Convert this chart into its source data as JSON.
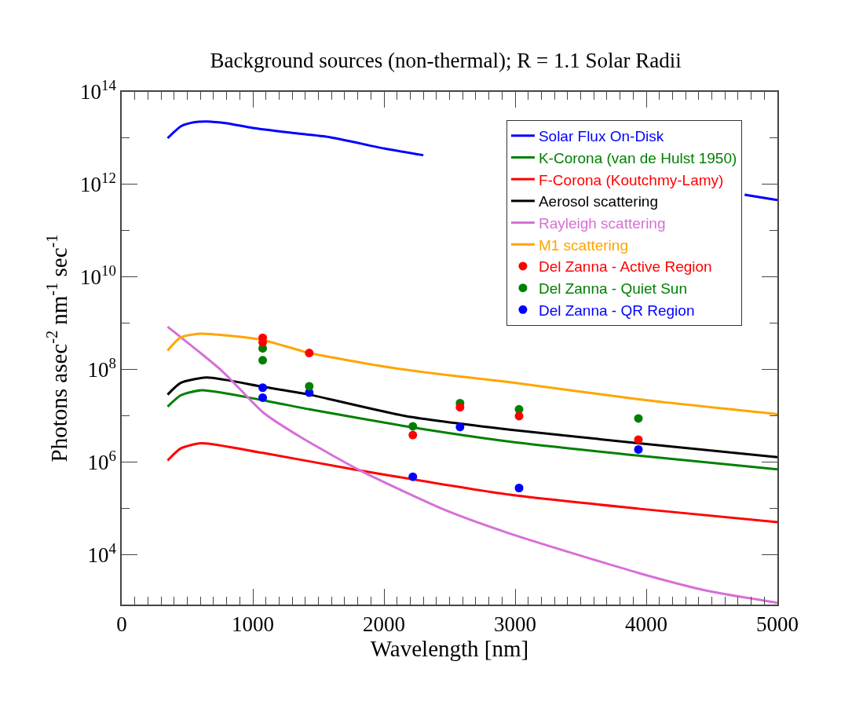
{
  "chart_data": {
    "type": "line",
    "title": "Background sources (non-thermal); R = 1.1 Solar Radii",
    "xlabel": "Wavelength [nm]",
    "ylabel": "Photons asec$^{-2}$ nm$^{-1}$ sec$^{-1}$",
    "log": "y",
    "grid": false,
    "legend": "top right",
    "line_style": "solid",
    "xlim": [
      0,
      5000
    ],
    "ylim": [
      850,
      100000000000000.0
    ],
    "xticks": [
      0,
      {
        "value": 100,
        "label": null
      },
      {
        "value": 200,
        "label": null
      },
      {
        "value": 300,
        "label": null
      },
      {
        "value": 400,
        "label": null
      },
      {
        "value": 500,
        "label": null
      },
      {
        "value": 600,
        "label": null
      },
      {
        "value": 700,
        "label": null
      },
      {
        "value": 800,
        "label": null
      },
      {
        "value": 900,
        "label": null
      },
      1000,
      {
        "value": 1100,
        "label": null
      },
      {
        "value": 1200,
        "label": null
      },
      {
        "value": 1300,
        "label": null
      },
      {
        "value": 1400,
        "label": null
      },
      {
        "value": 1500,
        "label": null
      },
      {
        "value": 1600,
        "label": null
      },
      {
        "value": 1700,
        "label": null
      },
      {
        "value": 1800,
        "label": null
      },
      {
        "value": 1900,
        "label": null
      },
      2000,
      {
        "value": 2100,
        "label": null
      },
      {
        "value": 2200,
        "label": null
      },
      {
        "value": 2300,
        "label": null
      },
      {
        "value": 2400,
        "label": null
      },
      {
        "value": 2500,
        "label": null
      },
      {
        "value": 2600,
        "label": null
      },
      {
        "value": 2700,
        "label": null
      },
      {
        "value": 2800,
        "label": null
      },
      {
        "value": 2900,
        "label": null
      },
      3000,
      {
        "value": 3100,
        "label": null
      },
      {
        "value": 3200,
        "label": null
      },
      {
        "value": 3300,
        "label": null
      },
      {
        "value": 3400,
        "label": null
      },
      {
        "value": 3500,
        "label": null
      },
      {
        "value": 3600,
        "label": null
      },
      {
        "value": 3700,
        "label": null
      },
      {
        "value": 3800,
        "label": null
      },
      {
        "value": 3900,
        "label": null
      },
      4000,
      {
        "value": 4100,
        "label": null
      },
      {
        "value": 4200,
        "label": null
      },
      {
        "value": 4300,
        "label": null
      },
      {
        "value": 4400,
        "label": null
      },
      {
        "value": 4500,
        "label": null
      },
      {
        "value": 4600,
        "label": null
      },
      {
        "value": 4700,
        "label": null
      },
      {
        "value": 4800,
        "label": null
      },
      {
        "value": 4900,
        "label": null
      },
      5000
    ],
    "yticks": [
      {
        "value": 10000,
        "label": "10$^{4}$"
      },
      {
        "value": 100000,
        "label": null
      },
      {
        "value": 1000000,
        "label": "10$^{6}$"
      },
      {
        "value": 10000000,
        "label": null
      },
      {
        "value": 100000000,
        "label": "10$^{8}$"
      },
      {
        "value": 1000000000,
        "label": null
      },
      {
        "value": 10000000000,
        "label": "10$^{10}$"
      },
      {
        "value": 100000000000,
        "label": null
      },
      {
        "value": 1000000000000,
        "label": "10$^{12}$"
      },
      {
        "value": 10000000000000,
        "label": null
      },
      {
        "value": 100000000000000,
        "label": "10$^{14}$"
      }
    ],
    "series": [
      {
        "name": "Solar Flux On-Disk",
        "type": "line",
        "marker": "none",
        "color": "#0000ff",
        "x": [
          350,
          450,
          550,
          650,
          800,
          1000,
          1300,
          1587,
          2000,
          2300,
          2600,
          3500,
          4500,
          4750,
          5000
        ],
        "values": [
          10000000000000.0,
          18000000000000.0,
          22000000000000.0,
          23000000000000.0,
          21000000000000.0,
          16600000000000.0,
          13000000000000.0,
          10500000000000.0,
          6000000000000.0,
          4300000000000.0,
          null,
          null,
          null,
          600000000000.0,
          460000000000.0
        ]
      },
      {
        "name": "K-Corona (van de Hulst 1950)",
        "type": "line",
        "marker": "none",
        "color": "#008000",
        "x": [
          350,
          450,
          610,
          1075,
          1430,
          2167,
          2960,
          3940,
          5000
        ],
        "values": [
          16000000.0,
          28000000.0,
          36000000.0,
          22000000.0,
          14000000.0,
          6000000.0,
          2800000.0,
          1400000.0,
          710000.0
        ]
      },
      {
        "name": "F-Corona (Koutchmy-Lamy)",
        "type": "line",
        "marker": "none",
        "color": "#ff0000",
        "x": [
          350,
          450,
          610,
          1075,
          1766,
          2960,
          3940,
          5000
        ],
        "values": [
          1100000.0,
          2000000.0,
          2600000.0,
          1600000.0,
          710000.0,
          200000.0,
          100000.0,
          51000.0
        ]
      },
      {
        "name": "Aerosol scattering",
        "type": "line",
        "marker": "none",
        "color": "#000000",
        "x": [
          350,
          450,
          650,
          1075,
          1430,
          2167,
          2960,
          3940,
          5000
        ],
        "values": [
          29000000.0,
          52000000.0,
          68000000.0,
          43000000.0,
          29000000.0,
          10000000.0,
          5100000.0,
          2600000.0,
          1300000.0
        ]
      },
      {
        "name": "Rayleigh scattering",
        "type": "line",
        "marker": "none",
        "color": "#d670d6",
        "x": [
          350,
          767,
          1078,
          1365,
          1826,
          2467,
          2960,
          3940,
          4460,
          5000
        ],
        "values": [
          850000000.0,
          93000000.0,
          12000000.0,
          3500000.0,
          650000.0,
          93000.0,
          29000.0,
          4100.0,
          1700.0,
          930
        ]
      },
      {
        "name": "M1 scattering",
        "type": "line",
        "marker": "none",
        "color": "#ffa500",
        "x": [
          350,
          450,
          600,
          800,
          1075,
          1430,
          2066,
          2500,
          2960,
          3940,
          5000
        ],
        "values": [
          260000000.0,
          500000000.0,
          600000000.0,
          550000000.0,
          440000000.0,
          230000000.0,
          110000000.0,
          76000000.0,
          54000000.0,
          23000000.0,
          11000000.0
        ]
      },
      {
        "name": "Del Zanna - Active Region",
        "type": "scatter",
        "marker": "circle",
        "color": "#ff0000",
        "x": [
          1075,
          1075,
          1430,
          2220,
          2580,
          3030,
          3940
        ],
        "values": [
          490000000.0,
          390000000.0,
          230000000.0,
          3900000.0,
          15500000.0,
          10000000.0,
          3100000.0
        ]
      },
      {
        "name": "Del Zanna - Quiet Sun",
        "type": "scatter",
        "marker": "circle",
        "color": "#008000",
        "x": [
          1075,
          1075,
          1430,
          2220,
          2580,
          3030,
          3940
        ],
        "values": [
          290000000.0,
          160000000.0,
          44000000.0,
          6000000.0,
          19000000.0,
          14000000.0,
          8900000.0
        ]
      },
      {
        "name": "Del Zanna - QR Region",
        "type": "scatter",
        "marker": "circle",
        "color": "#0000ff",
        "x": [
          1075,
          1075,
          1430,
          2220,
          2580,
          3030,
          3940
        ],
        "values": [
          41000000.0,
          25000000.0,
          32000000.0,
          490000.0,
          5800000.0,
          280000.0,
          1900000.0
        ]
      }
    ]
  }
}
